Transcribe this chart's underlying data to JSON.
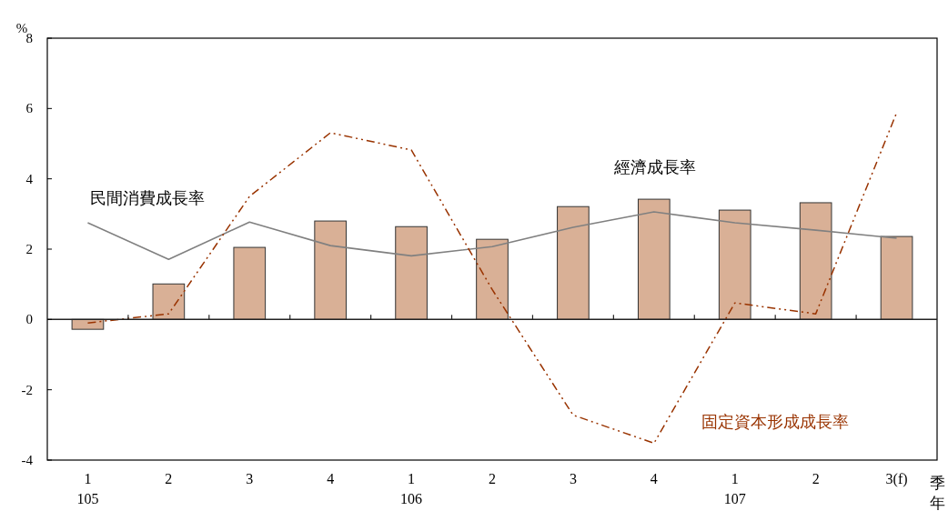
{
  "chart_data": {
    "type": "bar",
    "ylabel": "%",
    "categories": [
      "1\n105",
      "2",
      "3",
      "4",
      "1\n106",
      "2",
      "3",
      "4",
      "1\n107",
      "2",
      "3(f)"
    ],
    "series": [
      {
        "name": "經濟成長率",
        "color": "#d9b096",
        "values": [
          -0.28,
          1.01,
          2.05,
          2.8,
          2.64,
          2.28,
          3.21,
          3.42,
          3.11,
          3.32,
          2.36
        ]
      },
      {
        "name": "民間消費成長率",
        "type": "line",
        "color": "#808080",
        "line_style": "solid",
        "values": [
          2.75,
          1.71,
          2.77,
          2.1,
          1.81,
          2.07,
          2.62,
          3.06,
          2.75,
          2.54,
          2.31
        ]
      },
      {
        "name": "固定資本形成成長率",
        "type": "line",
        "color": "#993300",
        "line_style": "dashed",
        "values": [
          -0.1,
          0.16,
          3.5,
          5.31,
          4.82,
          0.85,
          -2.72,
          -3.52,
          0.47,
          0.16,
          5.88
        ]
      }
    ],
    "ylim": [
      -4,
      8
    ],
    "yticks": [
      {
        "value": -4,
        "label": "-4"
      },
      -2,
      0,
      2,
      4,
      6,
      8
    ],
    "legend": false,
    "marker": "none",
    "annotations": [
      "季",
      "年"
    ]
  }
}
